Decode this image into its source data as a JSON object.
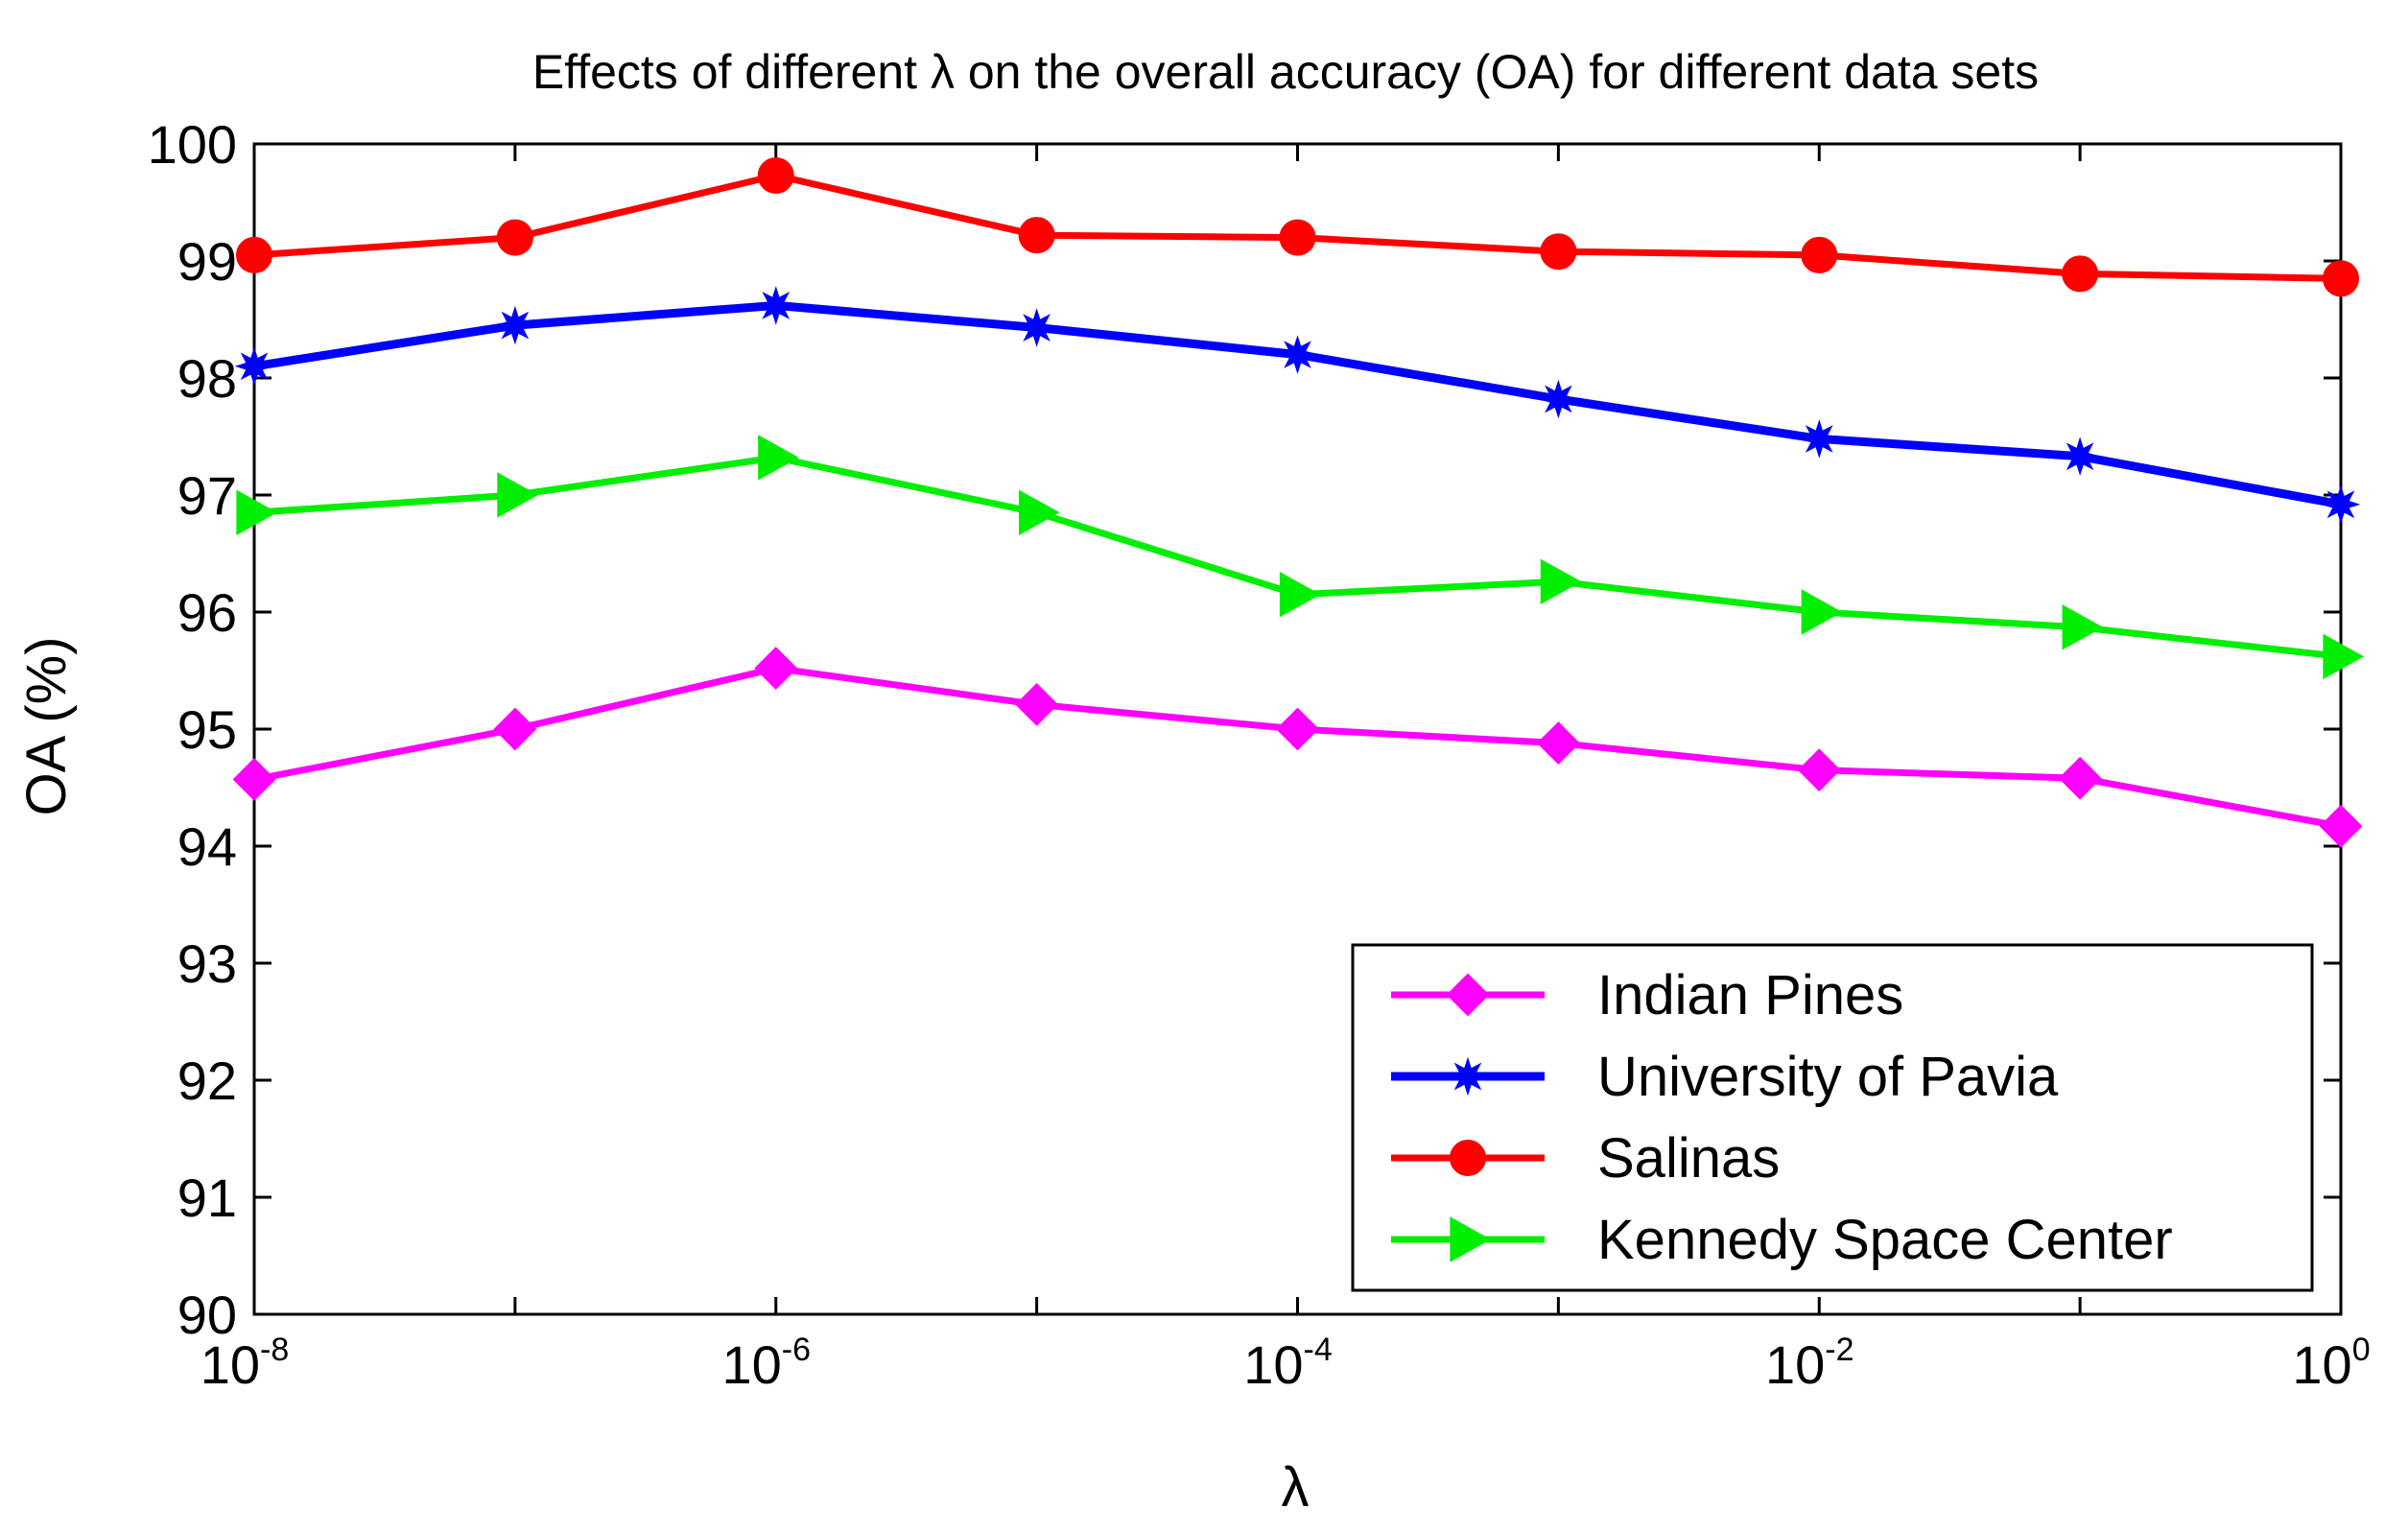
{
  "chart_data": {
    "type": "line",
    "title": "Effects of different λ on the overall accuracy (OA) for different data sets",
    "xlabel": "λ",
    "ylabel": "OA (%)",
    "xscale": "log",
    "xlim": [
      1e-08,
      1
    ],
    "ylim": [
      90,
      100
    ],
    "grid": false,
    "legend_position": "bottom-right",
    "x": [
      1e-08,
      1e-07,
      1e-06,
      1e-05,
      0.0001,
      0.001,
      0.01,
      0.1,
      1
    ],
    "x_ticks": [
      {
        "value": 1e-08,
        "base": "10",
        "exp": "-8"
      },
      {
        "value": 1e-06,
        "base": "10",
        "exp": "-6"
      },
      {
        "value": 0.0001,
        "base": "10",
        "exp": "-4"
      },
      {
        "value": 0.01,
        "base": "10",
        "exp": "-2"
      },
      {
        "value": 1,
        "base": "10",
        "exp": "0"
      }
    ],
    "y_ticks": [
      90,
      91,
      92,
      93,
      94,
      95,
      96,
      97,
      98,
      99,
      100
    ],
    "series": [
      {
        "name": "Indian Pines",
        "color": "#ff00ff",
        "marker": "diamond",
        "values": [
          94.57,
          95.0,
          95.52,
          95.21,
          95.0,
          94.88,
          94.65,
          94.58,
          94.17
        ]
      },
      {
        "name": "University of Pavia",
        "color": "#0000ff",
        "marker": "star",
        "values": [
          98.1,
          98.45,
          98.62,
          98.43,
          98.2,
          97.82,
          97.48,
          97.33,
          96.92
        ]
      },
      {
        "name": "Salinas",
        "color": "#ff0000",
        "marker": "circle",
        "values": [
          99.05,
          99.2,
          99.73,
          99.22,
          99.2,
          99.08,
          99.05,
          98.89,
          98.85
        ]
      },
      {
        "name": "Kennedy Space Center",
        "color": "#00ee00",
        "marker": "triangle-right",
        "values": [
          96.85,
          97.0,
          97.32,
          96.85,
          96.15,
          96.26,
          96.0,
          95.87,
          95.62
        ]
      }
    ]
  }
}
